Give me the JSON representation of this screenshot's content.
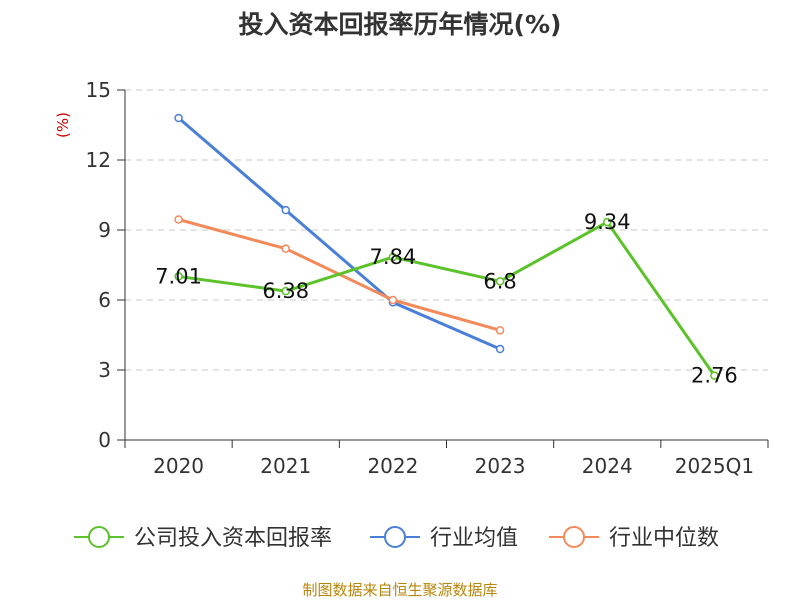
{
  "title": "投入资本回报率历年情况(%)",
  "source": "制图数据来自恒生聚源数据库",
  "chart_data": {
    "type": "line",
    "title": "投入资本回报率历年情况(%)",
    "ylabel": "(%)",
    "xlabel": "",
    "categories": [
      "2020",
      "2021",
      "2022",
      "2023",
      "2024",
      "2025Q1"
    ],
    "ylim": [
      0,
      15
    ],
    "yticks": [
      0,
      3,
      6,
      9,
      12,
      15
    ],
    "grid": true,
    "legend_position": "bottom",
    "series": [
      {
        "name": "公司投入资本回报率",
        "color": "#5cc22a",
        "values": [
          7.01,
          6.38,
          7.84,
          6.8,
          9.34,
          2.76
        ],
        "labels": [
          "7.01",
          "6.38",
          "7.84",
          "6.8",
          "9.34",
          "2.76"
        ],
        "show_labels": true
      },
      {
        "name": "行业均值",
        "color": "#4a7fd8",
        "values": [
          13.8,
          9.85,
          5.9,
          3.9,
          null,
          null
        ],
        "show_labels": false
      },
      {
        "name": "行业中位数",
        "color": "#f4895a",
        "values": [
          9.45,
          8.2,
          6.0,
          4.7,
          null,
          null
        ],
        "show_labels": false
      }
    ]
  }
}
